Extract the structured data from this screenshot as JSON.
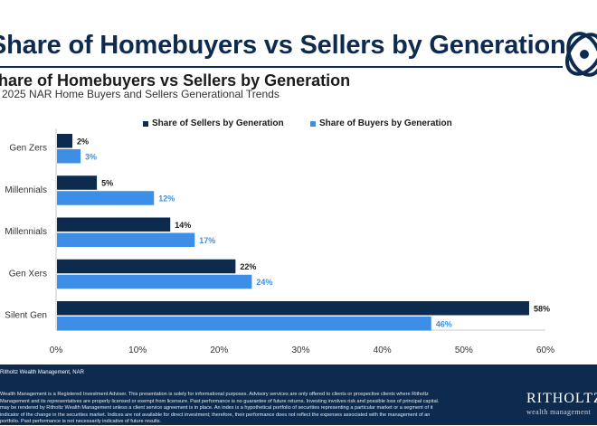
{
  "slide": {
    "title": "Share of Homebuyers vs Sellers by Generation"
  },
  "chart_data": {
    "type": "bar",
    "orientation": "horizontal",
    "title": "Share of Homebuyers vs Sellers by Generation",
    "subtitle": "2025 NAR Home Buyers and Sellers Generational Trends",
    "categories": [
      "Gen Zers",
      "Millennials",
      "Millennials",
      "Gen Xers",
      "Silent Gen"
    ],
    "series": [
      {
        "name": "Share of Sellers by Generation",
        "color": "#0d2a4f",
        "label_color": "#1b1b1b",
        "values": [
          2,
          5,
          14,
          22,
          58
        ],
        "labels": [
          "2%",
          "5%",
          "14%",
          "22%",
          "58%"
        ]
      },
      {
        "name": "Share of Buyers by Generation",
        "color": "#3d8ee6",
        "label_color": "#3d8ee6",
        "values": [
          3,
          12,
          17,
          24,
          46
        ],
        "labels": [
          "3%",
          "12%",
          "17%",
          "24%",
          "46%"
        ]
      }
    ],
    "x_ticks": [
      0,
      10,
      20,
      30,
      40,
      50,
      60
    ],
    "x_tick_labels": [
      "0%",
      "10%",
      "20%",
      "30%",
      "40%",
      "50%",
      "60%"
    ],
    "xlim": [
      0,
      60
    ],
    "xlabel": "",
    "ylabel": "",
    "grid": false,
    "legend_position": "top"
  },
  "footer": {
    "source": "Ritholtz Wealth Management, NAR",
    "disclaimer": "Wealth Management is a Registered Investment Adviser. This presentation is solely for informational purposes. Advisory services are only offered to clients or prospective clients where Ritholtz\nManagement and its representatives are properly licensed or exempt from licensure. Past performance is no guarantee of future returns. Investing involves risk and possible loss of principal capital.\nmay be rendered by Ritholtz Wealth Management unless a client service agreement is in place. An index is a hypothetical portfolio of securities representing a particular market or a segment of it\nindicator of the change in the securities market. Indices are not available for direct investment; therefore, their performance does not reflect the expenses associated with the management of an\nportfolio. Past performance is not necessarily indicative of future results.",
    "brand_name": "RITHOLTZ",
    "brand_sub": "wealth management"
  },
  "colors": {
    "navy": "#0d2a4f",
    "blue": "#3d8ee6",
    "axis": "#c8c8c8"
  },
  "icons": {
    "logo": "ritholtz-knot-logo-icon"
  }
}
